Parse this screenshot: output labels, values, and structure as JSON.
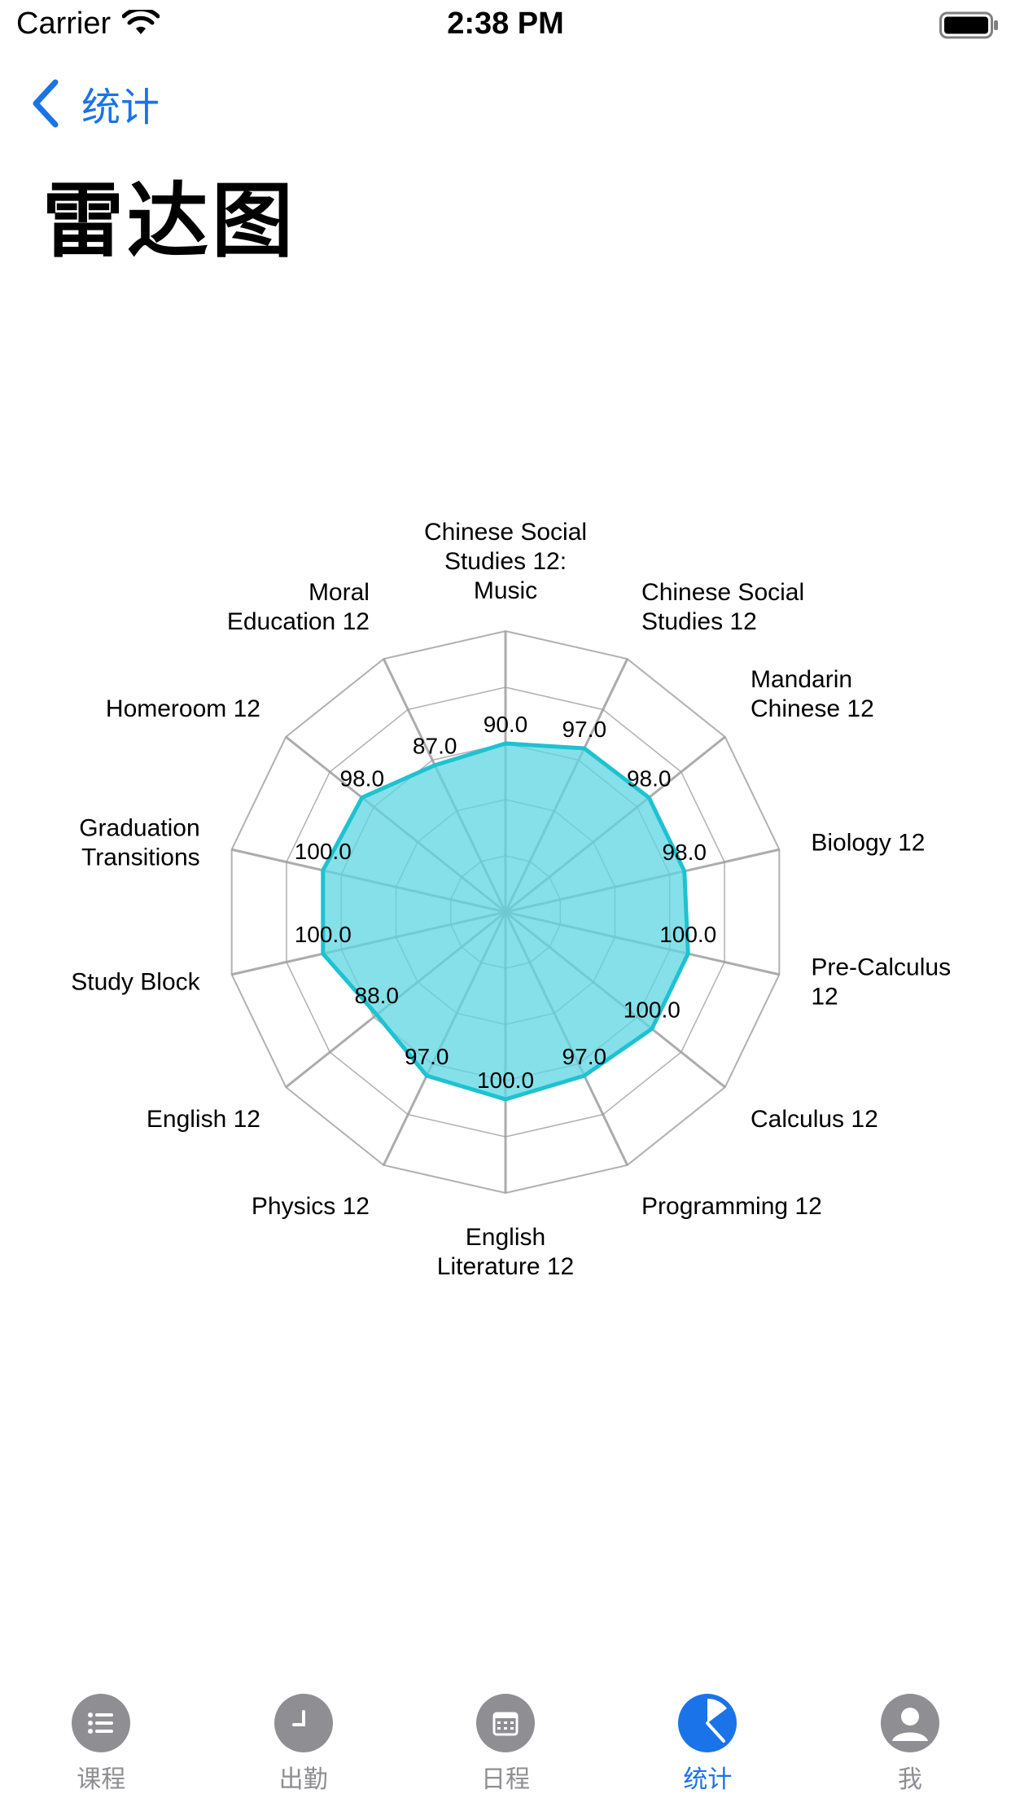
{
  "status_bar": {
    "carrier": "Carrier",
    "time": "2:38 PM"
  },
  "nav": {
    "back_label": "统计"
  },
  "page": {
    "title": "雷达图"
  },
  "colors": {
    "accent": "#1a73e8",
    "series_stroke": "#1ec2d0",
    "series_fill": "#5cd6e2",
    "grid": "#9e9e9e",
    "tab_inactive": "#8e8e93"
  },
  "chart_data": {
    "type": "radar",
    "categories": [
      "Chinese Social Studies 12: Music",
      "Chinese Social Studies 12",
      "Mandarin Chinese 12",
      "Biology 12",
      "Pre-Calculus 12",
      "Calculus 12",
      "Programming 12",
      "English Literature 12",
      "Physics 12",
      "English 12",
      "Study Block",
      "Graduation Transitions",
      "Homeroom 12",
      "Moral Education 12"
    ],
    "values": [
      90.0,
      97.0,
      98.0,
      98.0,
      100.0,
      100.0,
      97.0,
      100.0,
      97.0,
      88.0,
      100.0,
      100.0,
      98.0,
      87.0
    ],
    "value_labels": [
      "90.0",
      "97.0",
      "98.0",
      "98.0",
      "100.0",
      "100.0",
      "97.0",
      "100.0",
      "97.0",
      "88.0",
      "100.0",
      "100.0",
      "98.0",
      "87.0"
    ],
    "rmax": 150,
    "grid_rings": 5,
    "legend": "none"
  },
  "tabs": [
    {
      "label": "课程",
      "icon": "list-icon",
      "active": false
    },
    {
      "label": "出勤",
      "icon": "clock-icon",
      "active": false
    },
    {
      "label": "日程",
      "icon": "calendar-icon",
      "active": false
    },
    {
      "label": "统计",
      "icon": "pie-chart-icon",
      "active": true
    },
    {
      "label": "我",
      "icon": "person-icon",
      "active": false
    }
  ]
}
